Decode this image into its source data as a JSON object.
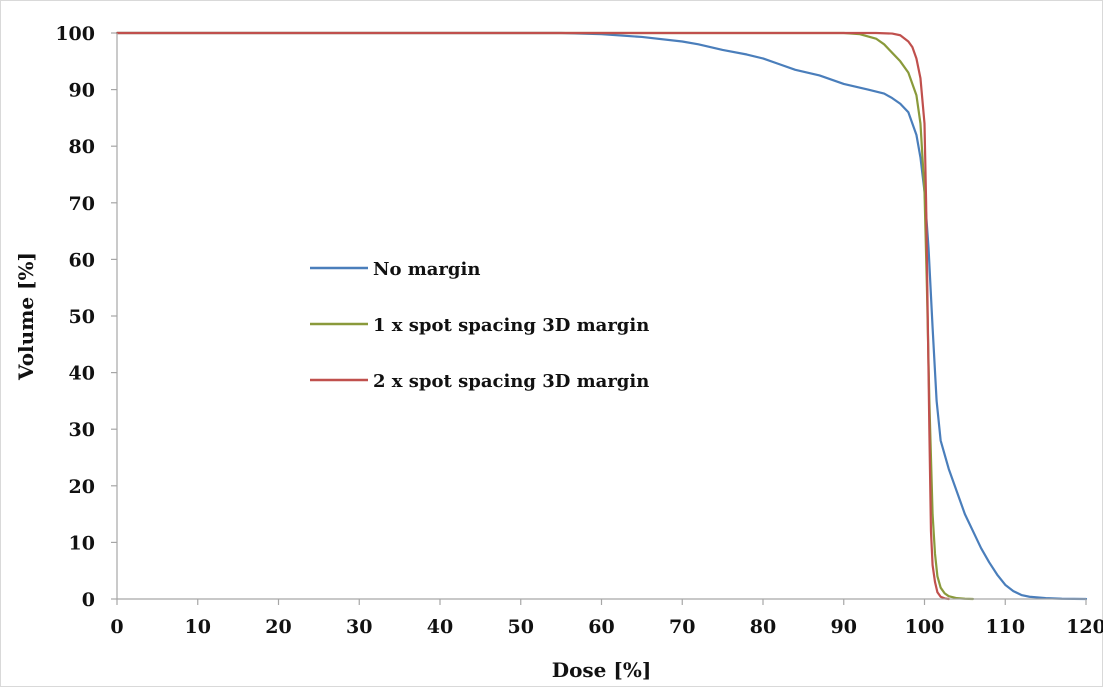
{
  "chart_data": {
    "type": "line",
    "title": "",
    "xlabel": "Dose [%]",
    "ylabel": "Volume [%]",
    "xlim": [
      0,
      120
    ],
    "ylim": [
      0,
      100
    ],
    "xticks": [
      0,
      10,
      20,
      30,
      40,
      50,
      60,
      70,
      80,
      90,
      100,
      110,
      120
    ],
    "yticks": [
      0,
      10,
      20,
      30,
      40,
      50,
      60,
      70,
      80,
      90,
      100
    ],
    "grid": false,
    "legend_position": "center-left",
    "series": [
      {
        "name": "No margin",
        "color": "#4a7ebb",
        "points": [
          [
            0,
            100
          ],
          [
            55,
            100
          ],
          [
            60,
            99.8
          ],
          [
            65,
            99.3
          ],
          [
            70,
            98.5
          ],
          [
            72,
            98
          ],
          [
            75,
            97
          ],
          [
            78,
            96.2
          ],
          [
            80,
            95.5
          ],
          [
            82,
            94.5
          ],
          [
            84,
            93.5
          ],
          [
            87,
            92.5
          ],
          [
            90,
            91
          ],
          [
            93,
            90
          ],
          [
            95,
            89.3
          ],
          [
            96,
            88.5
          ],
          [
            97,
            87.5
          ],
          [
            98,
            86
          ],
          [
            99,
            82
          ],
          [
            99.5,
            78
          ],
          [
            100,
            72
          ],
          [
            100.5,
            62
          ],
          [
            101,
            48
          ],
          [
            101.5,
            35
          ],
          [
            102,
            28
          ],
          [
            103,
            23
          ],
          [
            104,
            19
          ],
          [
            105,
            15
          ],
          [
            106,
            12
          ],
          [
            107,
            9
          ],
          [
            108,
            6.5
          ],
          [
            109,
            4.3
          ],
          [
            110,
            2.5
          ],
          [
            111,
            1.4
          ],
          [
            112,
            0.7
          ],
          [
            113,
            0.4
          ],
          [
            115,
            0.15
          ],
          [
            117,
            0.05
          ],
          [
            120,
            0
          ]
        ]
      },
      {
        "name": "1 x spot spacing 3D margin",
        "color": "#8a9a3b",
        "points": [
          [
            0,
            100
          ],
          [
            90,
            100
          ],
          [
            92,
            99.8
          ],
          [
            94,
            99
          ],
          [
            95,
            98
          ],
          [
            96,
            96.5
          ],
          [
            97,
            95
          ],
          [
            98,
            93
          ],
          [
            99,
            89
          ],
          [
            99.5,
            84
          ],
          [
            100,
            72
          ],
          [
            100.3,
            55
          ],
          [
            100.6,
            35
          ],
          [
            101,
            15
          ],
          [
            101.3,
            8
          ],
          [
            101.6,
            4
          ],
          [
            102,
            2
          ],
          [
            102.5,
            1
          ],
          [
            103,
            0.5
          ],
          [
            104,
            0.15
          ],
          [
            105,
            0.05
          ],
          [
            106,
            0
          ]
        ]
      },
      {
        "name": "2 x spot spacing 3D margin",
        "color": "#c0504d",
        "points": [
          [
            0,
            100
          ],
          [
            94,
            100
          ],
          [
            96,
            99.9
          ],
          [
            97,
            99.6
          ],
          [
            98,
            98.5
          ],
          [
            98.5,
            97.5
          ],
          [
            99,
            95.5
          ],
          [
            99.5,
            92
          ],
          [
            100,
            84
          ],
          [
            100.2,
            70
          ],
          [
            100.4,
            50
          ],
          [
            100.6,
            30
          ],
          [
            100.8,
            12
          ],
          [
            101,
            6
          ],
          [
            101.3,
            3
          ],
          [
            101.6,
            1.2
          ],
          [
            102,
            0.4
          ],
          [
            102.5,
            0.1
          ],
          [
            103,
            0
          ]
        ]
      }
    ]
  }
}
